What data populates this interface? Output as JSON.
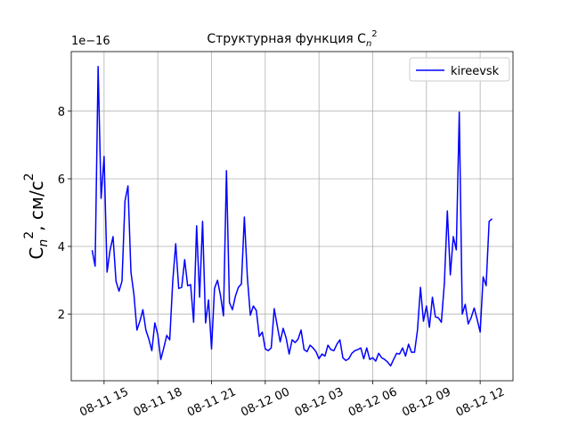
{
  "chart_data": {
    "type": "line",
    "title": [
      "Структурная функция C",
      "n",
      "2"
    ],
    "ylabel": [
      ", см/с",
      "C",
      "n",
      "2",
      "2"
    ],
    "y_offset": "1e−16",
    "legend": "upper right",
    "grid": true,
    "xlim": [
      "08-11 13:10",
      "08-12 13:50"
    ],
    "xticks": [
      "08-11 15",
      "08-11 18",
      "08-11 21",
      "08-12 00",
      "08-12 03",
      "08-12 06",
      "08-12 09",
      "08-12 12"
    ],
    "ylim": [
      0.03,
      9.76
    ],
    "yticks": [
      2,
      4,
      6,
      8
    ],
    "x": [
      "08-11 14:20",
      "08-11 14:30",
      "08-11 14:40",
      "08-11 14:50",
      "08-11 15:00",
      "08-11 15:10",
      "08-11 15:20",
      "08-11 15:30",
      "08-11 15:40",
      "08-11 15:50",
      "08-11 16:00",
      "08-11 16:10",
      "08-11 16:20",
      "08-11 16:30",
      "08-11 16:40",
      "08-11 16:50",
      "08-11 17:00",
      "08-11 17:10",
      "08-11 17:20",
      "08-11 17:30",
      "08-11 17:40",
      "08-11 17:50",
      "08-11 18:00",
      "08-11 18:10",
      "08-11 18:20",
      "08-11 18:30",
      "08-11 18:40",
      "08-11 18:50",
      "08-11 19:00",
      "08-11 19:10",
      "08-11 19:20",
      "08-11 19:30",
      "08-11 19:40",
      "08-11 19:50",
      "08-11 20:00",
      "08-11 20:10",
      "08-11 20:20",
      "08-11 20:30",
      "08-11 20:40",
      "08-11 20:50",
      "08-11 21:00",
      "08-11 21:10",
      "08-11 21:20",
      "08-11 21:30",
      "08-11 21:40",
      "08-11 21:50",
      "08-11 22:00",
      "08-11 22:10",
      "08-11 22:20",
      "08-11 22:30",
      "08-11 22:40",
      "08-11 22:50",
      "08-11 23:00",
      "08-11 23:10",
      "08-11 23:20",
      "08-11 23:30",
      "08-11 23:40",
      "08-11 23:50",
      "08-12 00:00",
      "08-12 00:10",
      "08-12 00:20",
      "08-12 00:30",
      "08-12 00:40",
      "08-12 00:50",
      "08-12 01:00",
      "08-12 01:10",
      "08-12 01:20",
      "08-12 01:30",
      "08-12 01:40",
      "08-12 01:50",
      "08-12 02:00",
      "08-12 02:10",
      "08-12 02:20",
      "08-12 02:30",
      "08-12 02:40",
      "08-12 02:50",
      "08-12 03:00",
      "08-12 03:10",
      "08-12 03:20",
      "08-12 03:30",
      "08-12 03:40",
      "08-12 03:50",
      "08-12 04:00",
      "08-12 04:10",
      "08-12 04:20",
      "08-12 04:30",
      "08-12 04:40",
      "08-12 04:50",
      "08-12 05:00",
      "08-12 05:10",
      "08-12 05:20",
      "08-12 05:30",
      "08-12 05:40",
      "08-12 05:50",
      "08-12 06:00",
      "08-12 06:10",
      "08-12 06:20",
      "08-12 06:30",
      "08-12 06:40",
      "08-12 06:50",
      "08-12 07:00",
      "08-12 07:10",
      "08-12 07:20",
      "08-12 07:30",
      "08-12 07:40",
      "08-12 07:50",
      "08-12 08:00",
      "08-12 08:10",
      "08-12 08:20",
      "08-12 08:30",
      "08-12 08:40",
      "08-12 08:50",
      "08-12 09:00",
      "08-12 09:10",
      "08-12 09:20",
      "08-12 09:30",
      "08-12 09:40",
      "08-12 09:50",
      "08-12 10:00",
      "08-12 10:10",
      "08-12 10:20",
      "08-12 10:30",
      "08-12 10:40",
      "08-12 10:50",
      "08-12 11:00",
      "08-12 11:10",
      "08-12 11:20",
      "08-12 11:30",
      "08-12 11:40",
      "08-12 11:50",
      "08-12 12:00",
      "08-12 12:10",
      "08-12 12:20",
      "08-12 12:30",
      "08-12 12:40"
    ],
    "series": [
      {
        "name": "kireevsk",
        "color": "#0000ff",
        "values": [
          3.89,
          3.42,
          9.32,
          5.42,
          6.66,
          3.24,
          3.89,
          4.29,
          2.97,
          2.68,
          2.97,
          5.34,
          5.79,
          3.24,
          2.58,
          1.53,
          1.79,
          2.13,
          1.53,
          1.26,
          0.92,
          1.74,
          1.39,
          0.66,
          1.0,
          1.37,
          1.24,
          2.97,
          4.08,
          2.76,
          2.79,
          3.61,
          2.84,
          2.87,
          1.76,
          4.61,
          2.5,
          4.74,
          1.74,
          2.42,
          0.97,
          2.76,
          3.0,
          2.55,
          1.95,
          6.24,
          2.34,
          2.13,
          2.53,
          2.79,
          2.89,
          4.87,
          3.1,
          1.97,
          2.24,
          2.11,
          1.34,
          1.47,
          0.97,
          0.92,
          1.0,
          2.16,
          1.66,
          1.18,
          1.58,
          1.29,
          0.82,
          1.24,
          1.16,
          1.26,
          1.53,
          0.95,
          0.89,
          1.08,
          1.0,
          0.89,
          0.68,
          0.82,
          0.76,
          1.08,
          0.95,
          0.92,
          1.11,
          1.24,
          0.71,
          0.63,
          0.68,
          0.84,
          0.92,
          0.95,
          1.0,
          0.68,
          1.0,
          0.66,
          0.71,
          0.61,
          0.84,
          0.71,
          0.66,
          0.58,
          0.47,
          0.66,
          0.84,
          0.82,
          1.0,
          0.76,
          1.11,
          0.87,
          0.87,
          1.53,
          2.79,
          1.79,
          2.24,
          1.61,
          2.5,
          1.92,
          1.89,
          1.76,
          2.9,
          5.05,
          3.16,
          4.29,
          3.9,
          7.97,
          2.0,
          2.29,
          1.71,
          1.9,
          2.18,
          1.84,
          1.47,
          3.1,
          2.84,
          4.74,
          4.82
        ]
      }
    ]
  }
}
